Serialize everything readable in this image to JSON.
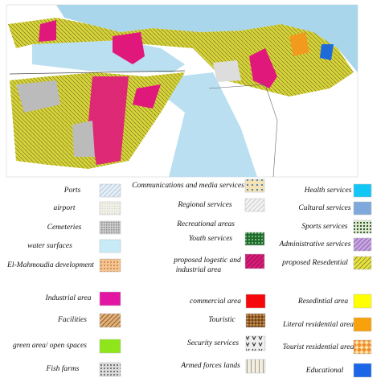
{
  "legend": {
    "upper": [
      [
        "Ports",
        "airport",
        "Cemeteries",
        "water surfaces",
        "El-Mahmoudia development"
      ],
      [
        "Communications and media services",
        "Regional services",
        "Recreational areas",
        "Youth services",
        [
          "proposed logestic and",
          "industrial area"
        ]
      ],
      [
        "Health services",
        "Cultural services",
        "Sports services",
        "Administrative services",
        "proposed  Resedential"
      ]
    ],
    "lower": [
      [
        "Industrial area",
        "Facilities",
        "green area/ open spaces",
        "Fish farms"
      ],
      [
        "commercial area",
        "Touristic",
        "Security services",
        "Armed forces lands"
      ],
      [
        "Resedintial area",
        "Literal residential area",
        "Tourist residential area",
        "Educational"
      ]
    ]
  }
}
